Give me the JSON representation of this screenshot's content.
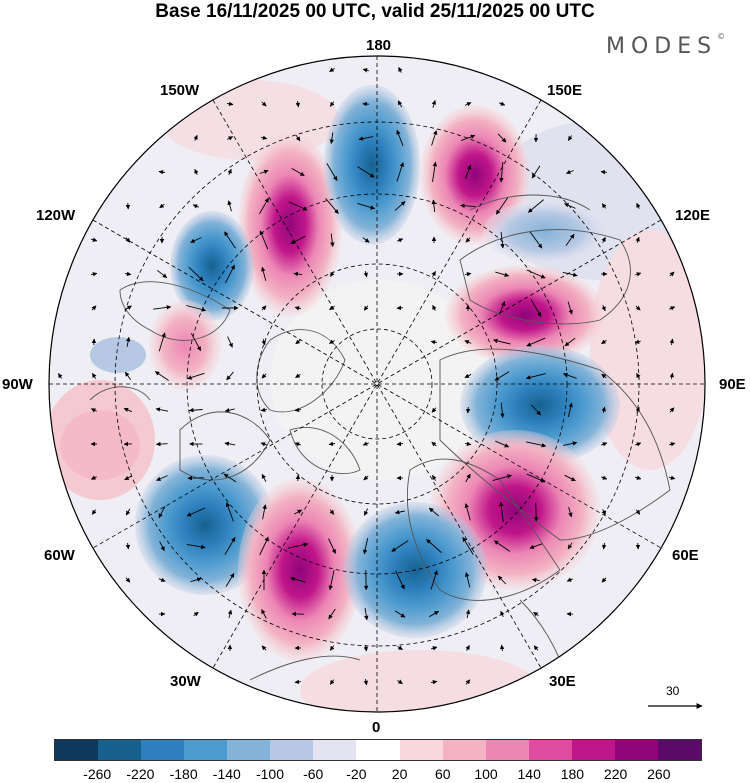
{
  "title": "Base 16/11/2025 00 UTC, valid 25/11/2025 00 UTC",
  "logo": "MODES",
  "logo_mark": "©",
  "longitude_labels": {
    "top": "180",
    "bottom": "0",
    "left": "90W",
    "right": "90E",
    "nw_upper": "150W",
    "nw_lower": "120W",
    "ne_upper": "150E",
    "ne_lower": "120E",
    "sw_upper": "60W",
    "sw_lower": "30W",
    "se_upper": "60E",
    "se_lower": "30E"
  },
  "reference_vector": "30",
  "colorbar": {
    "ticks": [
      "-260",
      "-220",
      "-180",
      "-140",
      "-100",
      "-60",
      "-20",
      "20",
      "60",
      "100",
      "140",
      "180",
      "220",
      "260"
    ],
    "colors": [
      "#0d3a5c",
      "#17618f",
      "#2d80bd",
      "#4e9bcf",
      "#83b3d8",
      "#b6c8e3",
      "#e3e3f1",
      "#ffffff",
      "#f8d8dc",
      "#f3b3c3",
      "#ec86b4",
      "#df4ba1",
      "#c0168a",
      "#90047a",
      "#5c0a6a"
    ]
  },
  "anomalies": [
    {
      "id": "pos-150w",
      "value": 260
    },
    {
      "id": "neg-180",
      "value": -200
    },
    {
      "id": "pos-150e",
      "value": 260
    },
    {
      "id": "neg-135w",
      "value": -200
    },
    {
      "id": "neg-120e",
      "value": -120
    },
    {
      "id": "pos-110w",
      "value": 140
    },
    {
      "id": "pos-100e",
      "value": 220
    },
    {
      "id": "neg-80e",
      "value": -200
    },
    {
      "id": "pos-60e",
      "value": 260
    },
    {
      "id": "neg-55w",
      "value": -180
    },
    {
      "id": "pos-30w",
      "value": 260
    },
    {
      "id": "neg-15e",
      "value": -200
    },
    {
      "id": "pos-80w",
      "value": 60
    },
    {
      "id": "neg-95w",
      "value": -100
    }
  ]
}
